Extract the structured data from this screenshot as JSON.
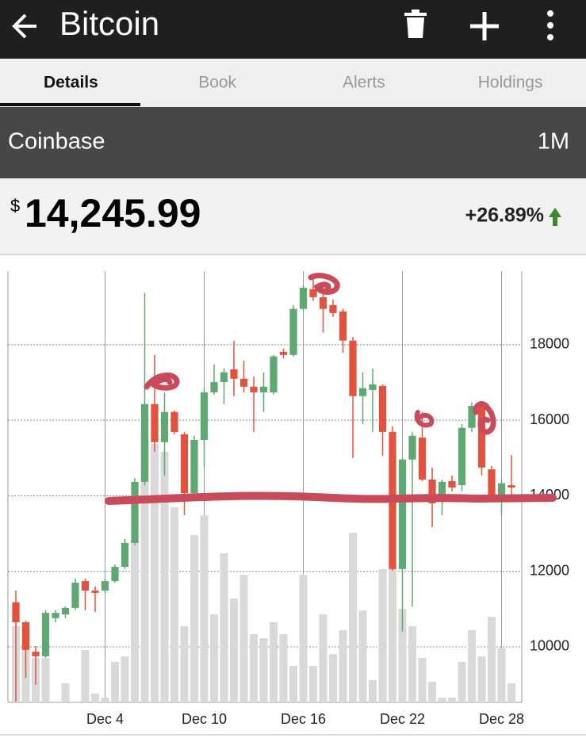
{
  "app_bar": {
    "title": "Bitcoin"
  },
  "tabs": [
    "Details",
    "Book",
    "Alerts",
    "Holdings"
  ],
  "active_tab": 0,
  "exchange": {
    "name": "Coinbase",
    "range": "1M"
  },
  "price": {
    "currency_symbol": "$",
    "value": "14,245.99",
    "change": "+26.89%"
  },
  "chart_data": {
    "type": "candlestick",
    "open": [
      11180,
      10650,
      9870,
      9750,
      10760,
      10860,
      11030,
      11740,
      11490,
      11490,
      11740,
      12120,
      12750,
      14370,
      16430,
      15420,
      16220,
      15630,
      14070,
      15480,
      16740,
      17010,
      17350,
      17100,
      16890,
      16740,
      16740,
      17810,
      17730,
      18950,
      19470,
      19260,
      19050,
      18880,
      18110,
      16640,
      16800,
      16910,
      15690,
      12060,
      14960,
      15540,
      14430,
      13950,
      14390,
      14280,
      15800,
      16380,
      14700,
      14010,
      14280
    ],
    "high": [
      11490,
      10700,
      10020,
      10970,
      10970,
      11070,
      11810,
      11810,
      11600,
      11810,
      12180,
      12860,
      14470,
      19370,
      17730,
      16740,
      16260,
      15690,
      15590,
      16850,
      17480,
      17370,
      18110,
      17580,
      17160,
      17270,
      17730,
      17900,
      19050,
      19580,
      19790,
      19580,
      19200,
      18950,
      18210,
      17270,
      17370,
      16950,
      15840,
      15000,
      15690,
      16220,
      14750,
      14430,
      14540,
      15900,
      16470,
      16470,
      14790,
      14430,
      15080
    ],
    "low": [
      8550,
      9180,
      9000,
      9710,
      10650,
      10760,
      10970,
      10970,
      10920,
      11430,
      11700,
      12060,
      12690,
      14280,
      15170,
      14540,
      15630,
      13490,
      14010,
      14750,
      16680,
      16430,
      16640,
      16740,
      15690,
      16220,
      16680,
      17640,
      17690,
      18900,
      19160,
      18320,
      18740,
      17790,
      15000,
      15900,
      15690,
      15060,
      12020,
      10400,
      11070,
      14390,
      13170,
      13490,
      14120,
      14120,
      15690,
      14540,
      13950,
      13490,
      13910
    ],
    "close": [
      10650,
      9920,
      9750,
      10900,
      10900,
      11030,
      11700,
      11490,
      11430,
      11740,
      12120,
      12750,
      14370,
      16430,
      15420,
      16220,
      15690,
      14070,
      15480,
      16740,
      17010,
      17270,
      17100,
      16890,
      16740,
      16890,
      17690,
      17730,
      18950,
      19510,
      19260,
      18950,
      18840,
      18110,
      16640,
      16850,
      16950,
      15690,
      12060,
      14960,
      15590,
      14430,
      13800,
      14370,
      14220,
      15800,
      16380,
      14750,
      14010,
      14330,
      14220
    ],
    "volume": [
      96,
      96,
      56,
      56,
      1,
      24,
      1,
      66,
      11,
      6,
      51,
      58,
      204,
      336,
      326,
      316,
      246,
      96,
      211,
      236,
      111,
      188,
      131,
      161,
      86,
      81,
      101,
      86,
      46,
      161,
      46,
      111,
      61,
      91,
      214,
      116,
      28,
      168,
      168,
      118,
      96,
      56,
      26,
      6,
      6,
      51,
      91,
      58,
      108,
      68,
      24
    ],
    "volume_lim": [
      0,
      544
    ],
    "xlim": [
      -0.8,
      51.04
    ],
    "xticks": [
      {
        "value": 9,
        "label": "Dec 4"
      },
      {
        "value": 19,
        "label": "Dec 10"
      },
      {
        "value": 29,
        "label": "Dec 16"
      },
      {
        "value": 39,
        "label": "Dec 22"
      },
      {
        "value": 49,
        "label": "Dec 28"
      }
    ],
    "ylim": [
      8530,
      19950
    ],
    "yticks": [
      10000,
      12000,
      14000,
      16000,
      18000
    ],
    "grid": true,
    "up_color": "#5fa873",
    "down_color": "#e2533f",
    "volume_color": "#d9d9d9"
  }
}
